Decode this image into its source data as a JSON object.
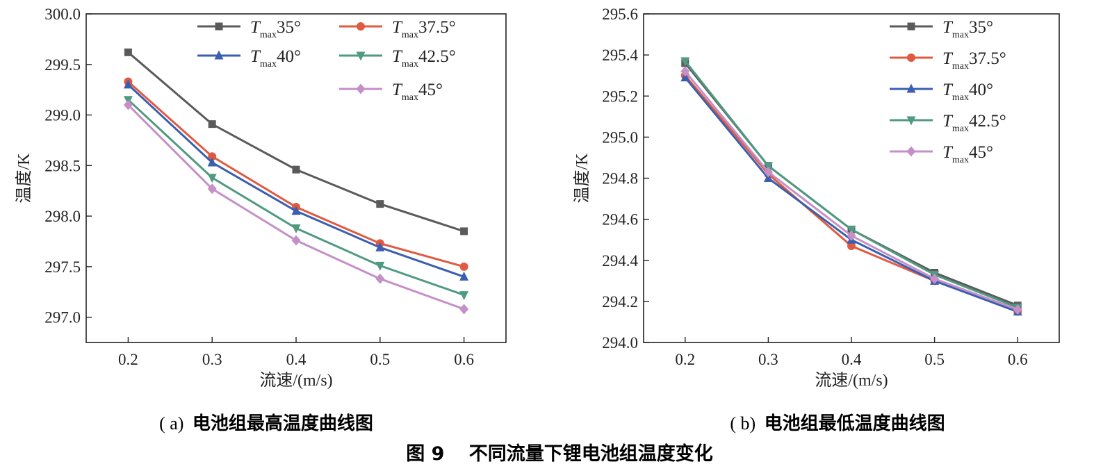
{
  "figure_caption": {
    "number": "图 9",
    "title": "不同流量下锂电池组温度变化"
  },
  "chart_data": [
    {
      "type": "line",
      "caption": {
        "prefix": "( a)",
        "title": "电池组最高温度曲线图"
      },
      "xlabel": "流速/(m/s)",
      "ylabel": "温度/K",
      "x": [
        0.2,
        0.3,
        0.4,
        0.5,
        0.6
      ],
      "xlim": [
        0.15,
        0.65
      ],
      "ylim": [
        296.75,
        300.0
      ],
      "x_ticks": [
        "0.2",
        "0.3",
        "0.4",
        "0.5",
        "0.6"
      ],
      "y_ticks": [
        "297.0",
        "297.5",
        "298.0",
        "298.5",
        "299.0",
        "299.5",
        "300.0"
      ],
      "y_tick_values": [
        297.0,
        297.5,
        298.0,
        298.5,
        299.0,
        299.5,
        300.0
      ],
      "legend_placement": "top, two columns",
      "series": [
        {
          "name": "35°",
          "label_base": "T",
          "label_sub": "max",
          "label_tail": "35°",
          "color": "#5a5a5a",
          "marker": "square",
          "values": [
            299.62,
            298.91,
            298.46,
            298.12,
            297.85
          ]
        },
        {
          "name": "37.5°",
          "label_base": "T",
          "label_sub": "max",
          "label_tail": "37.5°",
          "color": "#e05a40",
          "marker": "circle",
          "values": [
            299.33,
            298.59,
            298.09,
            297.73,
            297.5
          ]
        },
        {
          "name": "40°",
          "label_base": "T",
          "label_sub": "max",
          "label_tail": "40°",
          "color": "#3a5fb0",
          "marker": "triangle-up",
          "values": [
            299.3,
            298.53,
            298.05,
            297.69,
            297.4
          ]
        },
        {
          "name": "42.5°",
          "label_base": "T",
          "label_sub": "max",
          "label_tail": "42.5°",
          "color": "#4f9a80",
          "marker": "triangle-down",
          "values": [
            299.15,
            298.38,
            297.88,
            297.51,
            297.22
          ]
        },
        {
          "name": "45°",
          "label_base": "T",
          "label_sub": "max",
          "label_tail": "45°",
          "color": "#c58fc8",
          "marker": "diamond",
          "values": [
            299.1,
            298.27,
            297.76,
            297.38,
            297.08
          ]
        }
      ]
    },
    {
      "type": "line",
      "caption": {
        "prefix": "( b)",
        "title": "电池组最低温度曲线图"
      },
      "xlabel": "流速/(m/s)",
      "ylabel": "温度/K",
      "x": [
        0.2,
        0.3,
        0.4,
        0.5,
        0.6
      ],
      "xlim": [
        0.15,
        0.65
      ],
      "ylim": [
        294.0,
        295.6
      ],
      "x_ticks": [
        "0.2",
        "0.3",
        "0.4",
        "0.5",
        "0.6"
      ],
      "y_ticks": [
        "294.0",
        "294.2",
        "294.4",
        "294.6",
        "294.8",
        "295.0",
        "295.2",
        "295.4",
        "295.6"
      ],
      "y_tick_values": [
        294.0,
        294.2,
        294.4,
        294.6,
        294.8,
        295.0,
        295.2,
        295.4,
        295.6
      ],
      "legend_placement": "top-right, one column",
      "series": [
        {
          "name": "35°",
          "label_base": "T",
          "label_sub": "max",
          "label_tail": "35°",
          "color": "#5a5a5a",
          "marker": "square",
          "values": [
            295.36,
            294.86,
            294.55,
            294.34,
            294.18
          ]
        },
        {
          "name": "37.5°",
          "label_base": "T",
          "label_sub": "max",
          "label_tail": "37.5°",
          "color": "#e05a40",
          "marker": "circle",
          "values": [
            295.3,
            294.82,
            294.47,
            294.3,
            294.15
          ]
        },
        {
          "name": "40°",
          "label_base": "T",
          "label_sub": "max",
          "label_tail": "40°",
          "color": "#3a5fb0",
          "marker": "triangle-up",
          "values": [
            295.29,
            294.8,
            294.5,
            294.3,
            294.15
          ]
        },
        {
          "name": "42.5°",
          "label_base": "T",
          "label_sub": "max",
          "label_tail": "42.5°",
          "color": "#4f9a80",
          "marker": "triangle-down",
          "values": [
            295.37,
            294.86,
            294.55,
            294.33,
            294.17
          ]
        },
        {
          "name": "45°",
          "label_base": "T",
          "label_sub": "max",
          "label_tail": "45°",
          "color": "#c58fc8",
          "marker": "diamond",
          "values": [
            295.32,
            294.83,
            294.52,
            294.31,
            294.16
          ]
        }
      ]
    }
  ]
}
